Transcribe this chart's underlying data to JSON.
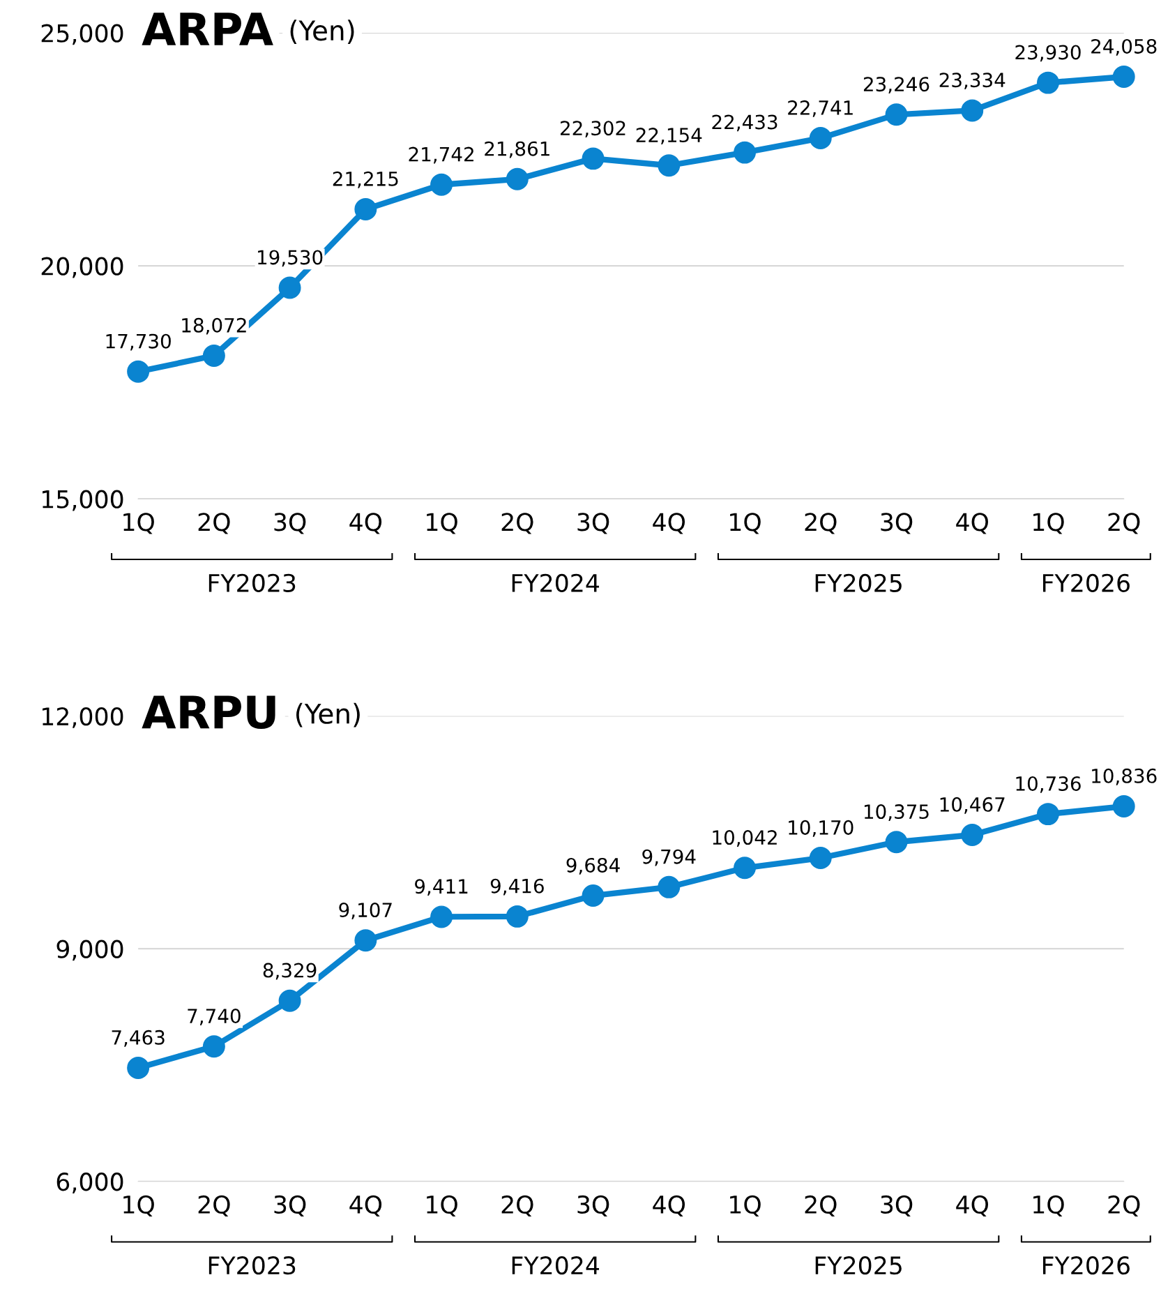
{
  "chart_data": [
    {
      "type": "line",
      "title": "ARPA",
      "subtitle": "(Yen)",
      "categories": [
        "1Q",
        "2Q",
        "3Q",
        "4Q",
        "1Q",
        "2Q",
        "3Q",
        "4Q",
        "1Q",
        "2Q",
        "3Q",
        "4Q",
        "1Q",
        "2Q"
      ],
      "series": [
        {
          "color": "#0a84d0",
          "values": [
            17730,
            18072,
            19530,
            21215,
            21742,
            21861,
            22302,
            22154,
            22433,
            22741,
            23246,
            23334,
            23930,
            24058
          ],
          "value_labels": [
            "17,730",
            "18,072",
            "19,530",
            "21,215",
            "21,742",
            "21,861",
            "22,302",
            "22,154",
            "22,433",
            "22,741",
            "23,246",
            "23,334",
            "23,930",
            "24,058"
          ]
        }
      ],
      "ylim": [
        15000,
        25000
      ],
      "yticks": [
        {
          "value": 15000,
          "label": "15,000"
        },
        {
          "value": 20000,
          "label": "20,000"
        },
        {
          "value": 25000,
          "label": "25,000"
        }
      ],
      "grid": "y",
      "marker": "circle",
      "line_style": "solid",
      "annotations": [
        "FY2023",
        "FY2024",
        "FY2025",
        "FY2026"
      ]
    },
    {
      "type": "line",
      "title": "ARPU",
      "subtitle": "(Yen)",
      "categories": [
        "1Q",
        "2Q",
        "3Q",
        "4Q",
        "1Q",
        "2Q",
        "3Q",
        "4Q",
        "1Q",
        "2Q",
        "3Q",
        "4Q",
        "1Q",
        "2Q"
      ],
      "series": [
        {
          "color": "#0a84d0",
          "values": [
            7463,
            7740,
            8329,
            9107,
            9411,
            9416,
            9684,
            9794,
            10042,
            10170,
            10375,
            10467,
            10736,
            10836
          ],
          "value_labels": [
            "7,463",
            "7,740",
            "8,329",
            "9,107",
            "9,411",
            "9,416",
            "9,684",
            "9,794",
            "10,042",
            "10,170",
            "10,375",
            "10,467",
            "10,736",
            "10,836"
          ]
        }
      ],
      "ylim": [
        6000,
        12000
      ],
      "yticks": [
        {
          "value": 6000,
          "label": "6,000"
        },
        {
          "value": 9000,
          "label": "9,000"
        },
        {
          "value": 12000,
          "label": "12,000"
        }
      ],
      "grid": "y",
      "marker": "circle",
      "line_style": "solid",
      "annotations": [
        "FY2023",
        "FY2024",
        "FY2025",
        "FY2026"
      ]
    }
  ]
}
